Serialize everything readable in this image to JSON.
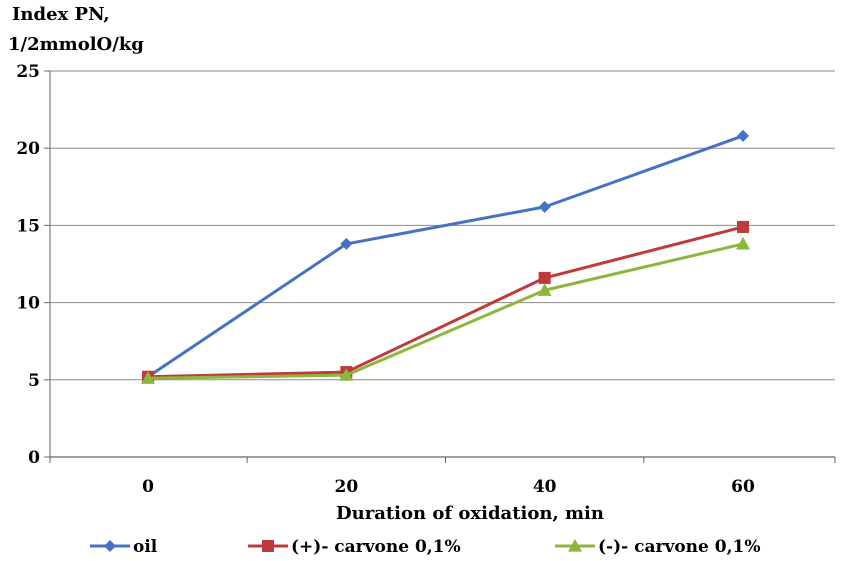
{
  "chart_data": {
    "type": "line",
    "ylabel_line1": "Index PN,",
    "ylabel_line2": "1/2mmolO/kg",
    "xlabel": "Duration of oxidation, min",
    "x": [
      0,
      20,
      40,
      60
    ],
    "x_tick_labels": [
      "0",
      "20",
      "40",
      "60"
    ],
    "ylim": [
      0,
      25
    ],
    "y_ticks": [
      0,
      5,
      10,
      15,
      20,
      25
    ],
    "y_tick_labels": [
      "0",
      "5",
      "10",
      "15",
      "20",
      "25"
    ],
    "grid": "horizontal",
    "legend_position": "bottom",
    "series": [
      {
        "name": "oil",
        "values": [
          5.2,
          13.8,
          16.2,
          20.8
        ],
        "color": "#4472C4",
        "marker": "diamond"
      },
      {
        "name": "(+)- carvone 0,1%",
        "values": [
          5.2,
          5.5,
          11.6,
          14.9
        ],
        "color": "#C0393B",
        "marker": "square"
      },
      {
        "name": "(-)- carvone 0,1%",
        "values": [
          5.1,
          5.3,
          10.8,
          13.8
        ],
        "color": "#8DB63C",
        "marker": "triangle"
      }
    ]
  }
}
